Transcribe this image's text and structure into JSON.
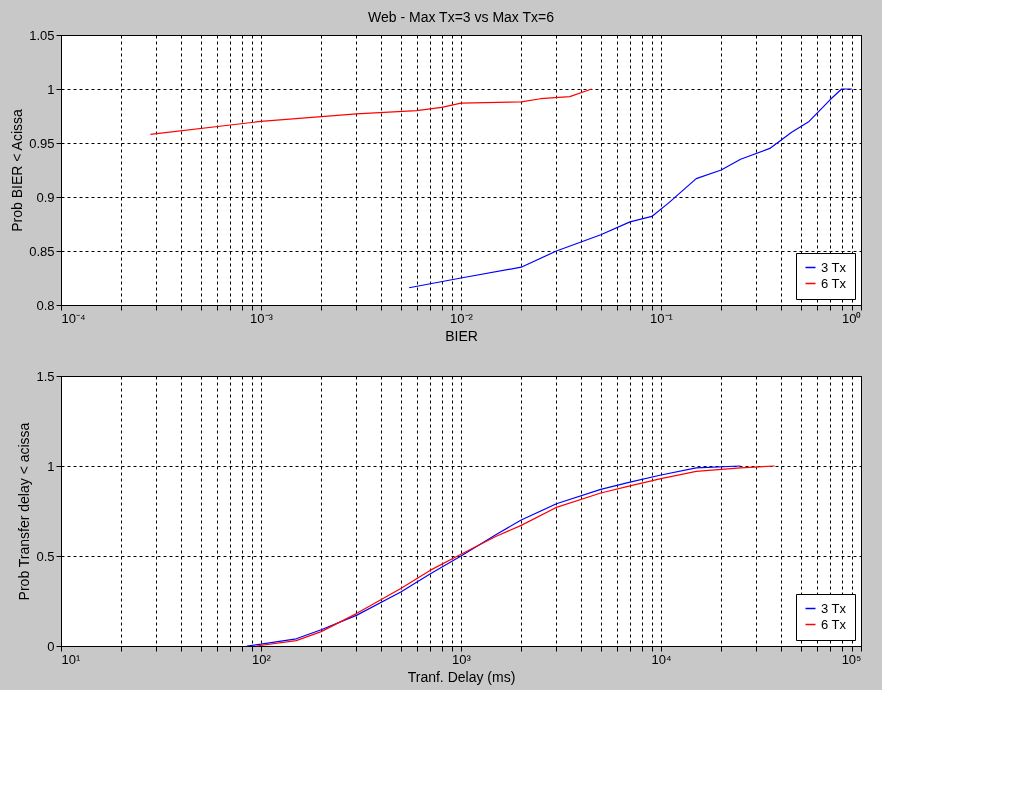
{
  "chart_data": [
    {
      "type": "line",
      "title": "Web - Max Tx=3 vs Max Tx=6",
      "xlabel": "BIER",
      "ylabel": "Prob BIER < Acissa",
      "log": "x",
      "grid": true,
      "legend": "bottom right",
      "line_style": "solid",
      "marker": "none",
      "xlim": [
        0.0001,
        1
      ],
      "ylim": [
        0.8,
        1.05
      ],
      "xticks": [
        {
          "value": 0.0001,
          "label": "10⁻⁴"
        },
        {
          "value": 0.0002,
          "label": null
        },
        {
          "value": 0.0003,
          "label": null
        },
        {
          "value": 0.0004,
          "label": null
        },
        {
          "value": 0.0005,
          "label": null
        },
        {
          "value": 0.0006,
          "label": null
        },
        {
          "value": 0.0007,
          "label": null
        },
        {
          "value": 0.0008,
          "label": null
        },
        {
          "value": 0.0009,
          "label": null
        },
        {
          "value": 0.001,
          "label": "10⁻³"
        },
        {
          "value": 0.002,
          "label": null
        },
        {
          "value": 0.003,
          "label": null
        },
        {
          "value": 0.004,
          "label": null
        },
        {
          "value": 0.005,
          "label": null
        },
        {
          "value": 0.006,
          "label": null
        },
        {
          "value": 0.007,
          "label": null
        },
        {
          "value": 0.008,
          "label": null
        },
        {
          "value": 0.009,
          "label": null
        },
        {
          "value": 0.01,
          "label": "10⁻²"
        },
        {
          "value": 0.02,
          "label": null
        },
        {
          "value": 0.03,
          "label": null
        },
        {
          "value": 0.04,
          "label": null
        },
        {
          "value": 0.05,
          "label": null
        },
        {
          "value": 0.06,
          "label": null
        },
        {
          "value": 0.07,
          "label": null
        },
        {
          "value": 0.08,
          "label": null
        },
        {
          "value": 0.09,
          "label": null
        },
        {
          "value": 0.1,
          "label": "10⁻¹"
        },
        {
          "value": 0.2,
          "label": null
        },
        {
          "value": 0.3,
          "label": null
        },
        {
          "value": 0.4,
          "label": null
        },
        {
          "value": 0.5,
          "label": null
        },
        {
          "value": 0.6,
          "label": null
        },
        {
          "value": 0.7,
          "label": null
        },
        {
          "value": 0.8,
          "label": null
        },
        {
          "value": 0.9,
          "label": null
        },
        {
          "value": 1,
          "label": "10⁰"
        }
      ],
      "yticks": [
        0.8,
        0.85,
        0.9,
        0.95,
        1,
        1.05
      ],
      "series": [
        {
          "name": "3 Tx",
          "color": "#0000ff",
          "x": [
            0.0055,
            0.01,
            0.02,
            0.03,
            0.05,
            0.07,
            0.09,
            0.11,
            0.15,
            0.2,
            0.25,
            0.35,
            0.45,
            0.55,
            0.7,
            0.8,
            0.9
          ],
          "values": [
            0.816,
            0.825,
            0.835,
            0.85,
            0.865,
            0.877,
            0.882,
            0.895,
            0.917,
            0.925,
            0.935,
            0.945,
            0.96,
            0.97,
            0.99,
            1.0,
            1.0
          ]
        },
        {
          "name": "6 Tx",
          "color": "#ff0000",
          "x": [
            0.00028,
            0.001,
            0.003,
            0.006,
            0.008,
            0.01,
            0.02,
            0.025,
            0.035,
            0.045
          ],
          "values": [
            0.958,
            0.97,
            0.977,
            0.98,
            0.983,
            0.987,
            0.988,
            0.991,
            0.993,
            1.0
          ]
        }
      ]
    },
    {
      "type": "line",
      "xlabel": "Tranf. Delay (ms)",
      "ylabel": "Prob Transfer delay < acissa",
      "log": "x",
      "grid": true,
      "legend": "bottom right",
      "line_style": "solid",
      "marker": "none",
      "xlim": [
        10,
        100000
      ],
      "ylim": [
        0,
        1.5
      ],
      "xticks": [
        {
          "value": 10,
          "label": "10¹"
        },
        {
          "value": 20,
          "label": null
        },
        {
          "value": 30,
          "label": null
        },
        {
          "value": 40,
          "label": null
        },
        {
          "value": 50,
          "label": null
        },
        {
          "value": 60,
          "label": null
        },
        {
          "value": 70,
          "label": null
        },
        {
          "value": 80,
          "label": null
        },
        {
          "value": 90,
          "label": null
        },
        {
          "value": 100,
          "label": "10²"
        },
        {
          "value": 200,
          "label": null
        },
        {
          "value": 300,
          "label": null
        },
        {
          "value": 400,
          "label": null
        },
        {
          "value": 500,
          "label": null
        },
        {
          "value": 600,
          "label": null
        },
        {
          "value": 700,
          "label": null
        },
        {
          "value": 800,
          "label": null
        },
        {
          "value": 900,
          "label": null
        },
        {
          "value": 1000,
          "label": "10³"
        },
        {
          "value": 2000,
          "label": null
        },
        {
          "value": 3000,
          "label": null
        },
        {
          "value": 4000,
          "label": null
        },
        {
          "value": 5000,
          "label": null
        },
        {
          "value": 6000,
          "label": null
        },
        {
          "value": 7000,
          "label": null
        },
        {
          "value": 8000,
          "label": null
        },
        {
          "value": 9000,
          "label": null
        },
        {
          "value": 10000,
          "label": "10⁴"
        },
        {
          "value": 20000,
          "label": null
        },
        {
          "value": 30000,
          "label": null
        },
        {
          "value": 40000,
          "label": null
        },
        {
          "value": 50000,
          "label": null
        },
        {
          "value": 60000,
          "label": null
        },
        {
          "value": 70000,
          "label": null
        },
        {
          "value": 80000,
          "label": null
        },
        {
          "value": 90000,
          "label": null
        },
        {
          "value": 100000,
          "label": "10⁵"
        }
      ],
      "yticks": [
        0,
        0.5,
        1,
        1.5
      ],
      "series": [
        {
          "name": "3 Tx",
          "color": "#0000ff",
          "x": [
            85,
            100,
            150,
            200,
            300,
            500,
            700,
            1000,
            1500,
            2000,
            3000,
            5000,
            7000,
            10000,
            15000,
            25000
          ],
          "values": [
            0,
            0.01,
            0.04,
            0.09,
            0.17,
            0.3,
            0.4,
            0.5,
            0.62,
            0.7,
            0.79,
            0.87,
            0.91,
            0.95,
            0.99,
            1.0
          ]
        },
        {
          "name": "6 Tx",
          "color": "#ff0000",
          "x": [
            95,
            150,
            200,
            300,
            500,
            700,
            1000,
            1500,
            2000,
            3000,
            5000,
            7000,
            10000,
            15000,
            25000,
            37000
          ],
          "values": [
            0,
            0.03,
            0.08,
            0.18,
            0.32,
            0.42,
            0.51,
            0.61,
            0.67,
            0.77,
            0.85,
            0.89,
            0.93,
            0.97,
            0.99,
            1.0
          ]
        }
      ]
    }
  ]
}
